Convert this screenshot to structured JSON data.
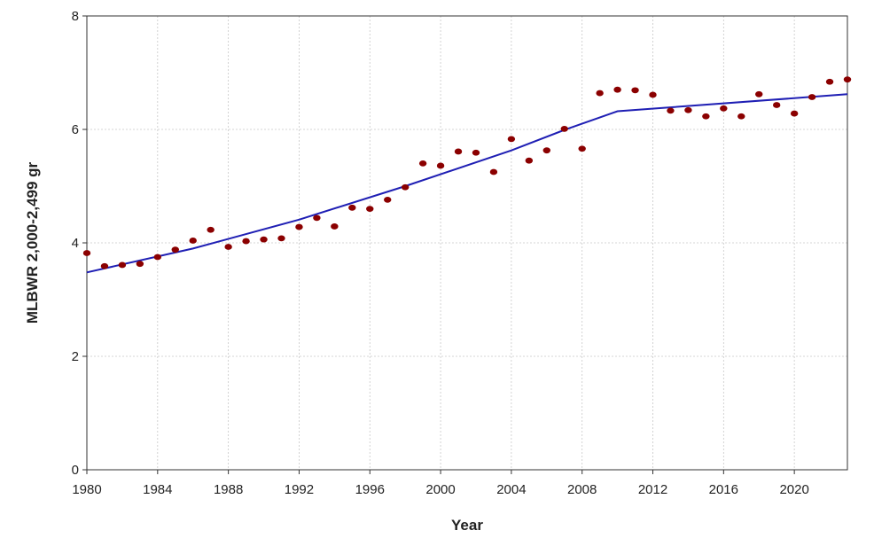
{
  "chart_data": {
    "type": "scatter",
    "title": "",
    "xlabel": "Year",
    "ylabel": "MLBWR 2,000-2,499 gr",
    "xlim": [
      1980,
      2023
    ],
    "ylim": [
      0,
      8
    ],
    "x_ticks": [
      1980,
      1984,
      1988,
      1992,
      1996,
      2000,
      2004,
      2008,
      2012,
      2016,
      2020
    ],
    "y_ticks": [
      0,
      2,
      4,
      6,
      8
    ],
    "grid": true,
    "legend": "none",
    "series": [
      {
        "type": "scatter",
        "color": "#8b0000",
        "points": [
          [
            1980,
            3.82
          ],
          [
            1981,
            3.59
          ],
          [
            1982,
            3.61
          ],
          [
            1983,
            3.63
          ],
          [
            1984,
            3.75
          ],
          [
            1985,
            3.88
          ],
          [
            1986,
            4.04
          ],
          [
            1987,
            4.23
          ],
          [
            1988,
            3.93
          ],
          [
            1989,
            4.03
          ],
          [
            1990,
            4.06
          ],
          [
            1991,
            4.08
          ],
          [
            1992,
            4.28
          ],
          [
            1993,
            4.44
          ],
          [
            1994,
            4.29
          ],
          [
            1995,
            4.62
          ],
          [
            1996,
            4.6
          ],
          [
            1997,
            4.76
          ],
          [
            1998,
            4.98
          ],
          [
            1999,
            5.4
          ],
          [
            2000,
            5.36
          ],
          [
            2001,
            5.61
          ],
          [
            2002,
            5.59
          ],
          [
            2003,
            5.25
          ],
          [
            2004,
            5.83
          ],
          [
            2005,
            5.45
          ],
          [
            2006,
            5.63
          ],
          [
            2007,
            6.01
          ],
          [
            2008,
            5.66
          ],
          [
            2009,
            6.64
          ],
          [
            2010,
            6.7
          ],
          [
            2011,
            6.69
          ],
          [
            2012,
            6.61
          ],
          [
            2013,
            6.33
          ],
          [
            2014,
            6.34
          ],
          [
            2015,
            6.23
          ],
          [
            2016,
            6.37
          ],
          [
            2017,
            6.23
          ],
          [
            2018,
            6.62
          ],
          [
            2019,
            6.43
          ],
          [
            2020,
            6.28
          ],
          [
            2021,
            6.57
          ],
          [
            2022,
            6.84
          ],
          [
            2023,
            6.88
          ]
        ]
      },
      {
        "type": "line",
        "color": "#1f1fb4",
        "points": [
          [
            1980,
            3.48
          ],
          [
            1986,
            3.9
          ],
          [
            1992,
            4.41
          ],
          [
            1998,
            5.0
          ],
          [
            2004,
            5.63
          ],
          [
            2007,
            5.99
          ],
          [
            2010,
            6.32
          ],
          [
            2023,
            6.62
          ]
        ]
      }
    ]
  }
}
